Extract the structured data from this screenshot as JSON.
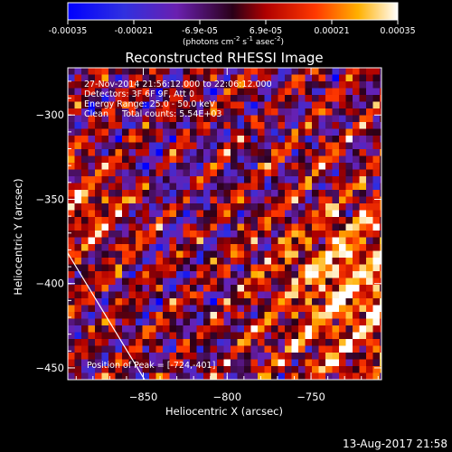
{
  "chart_data": {
    "type": "heatmap",
    "title": "Reconstructed RHESSI Image",
    "xlabel": "Heliocentric X (arcsec)",
    "ylabel": "Heliocentric Y (arcsec)",
    "xlim": [
      -895,
      -708
    ],
    "ylim": [
      -457,
      -272
    ],
    "x_ticks": [
      -850,
      -800,
      -750
    ],
    "y_ticks": [
      -300,
      -350,
      -400,
      -450
    ],
    "colorbar": {
      "label_html": "(photons cm<tspan dy='-4' font-size='7'>-2</tspan><tspan dy='4'> s</tspan><tspan dy='-4' font-size='7'>-1</tspan><tspan dy='4'> asec</tspan><tspan dy='-4' font-size='7'>-2</tspan><tspan dy='4'>)</tspan>",
      "range": [
        -0.00035,
        0.00035
      ],
      "tick_labels": [
        "-0.00035",
        "-0.00021",
        "-6.9e-05",
        "6.9e-05",
        "0.00021",
        "0.00035"
      ]
    },
    "annotations": [
      "27-Nov-2014 21:56:12.000 to 22:06:12.000",
      "Detectors: 3F 6F 9F, Att 0",
      "Energy Range: 25.0 - 50.0 keV",
      "Clean     Total counts: 5.54E+03"
    ],
    "peak_label": "Position of Peak = [-724,-401]",
    "peak": [
      -724,
      -401
    ],
    "grid": false
  },
  "footer": {
    "timestamp": "13-Aug-2017 21:58"
  }
}
